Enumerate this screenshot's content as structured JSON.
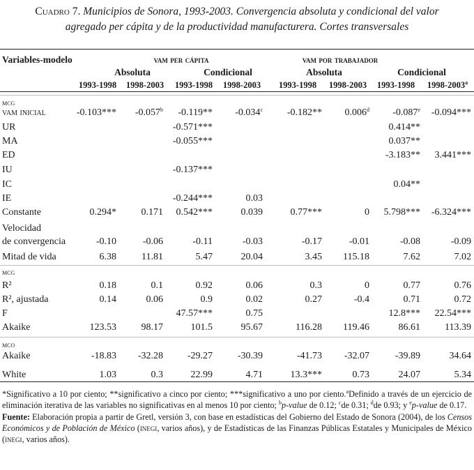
{
  "caption": {
    "number": "Cuadro 7.",
    "title_line1": "Municipios de Sonora, 1993-2003. Convergencia absoluta y condicional del valor",
    "title_line2": "agregado per cápita y de la productividad manufacturera. Cortes transversales"
  },
  "header": {
    "variables": "Variables-modelo",
    "group1": "vam per cápita",
    "group2": "vam por trabajador",
    "sub_abs1": "Absoluta",
    "sub_cond1": "Condicional",
    "sub_abs2": "Absoluta",
    "sub_cond2": "Condicional",
    "periods": [
      "1993-1998",
      "1998-2003",
      "1993-1998",
      "1998-2003",
      "1993-1998",
      "1998-2003",
      "1993-1998",
      "1998-2003"
    ],
    "last_period_sup": "a"
  },
  "rows": [
    {
      "label": "mcg",
      "small": true,
      "cells": [
        "",
        "",
        "",
        "",
        "",
        "",
        "",
        ""
      ]
    },
    {
      "label": "vam inicial",
      "small_label": true,
      "cells": [
        "-0.103***",
        "-0.057",
        "-0.119**",
        "-0.034",
        "-0.182**",
        "0.006",
        "-0.087",
        "-0.094***"
      ],
      "sups": [
        "",
        "b",
        "",
        "c",
        "",
        "d",
        "e",
        ""
      ]
    },
    {
      "label": "UR",
      "cells": [
        "",
        "",
        "-0.571***",
        "",
        "",
        "",
        "0.414**",
        ""
      ]
    },
    {
      "label": "MA",
      "cells": [
        "",
        "",
        "-0.055***",
        "",
        "",
        "",
        "0.037**",
        ""
      ]
    },
    {
      "label": "ED",
      "cells": [
        "",
        "",
        "",
        "",
        "",
        "",
        "-3.183**",
        "3.441***"
      ]
    },
    {
      "label": "IU",
      "cells": [
        "",
        "",
        "-0.137***",
        "",
        "",
        "",
        "",
        ""
      ]
    },
    {
      "label": "IC",
      "cells": [
        "",
        "",
        "",
        "",
        "",
        "",
        "0.04**",
        ""
      ]
    },
    {
      "label": "IE",
      "cells": [
        "",
        "",
        "-0.244***",
        "0.03",
        "",
        "",
        "",
        ""
      ]
    },
    {
      "label": "Constante",
      "cells": [
        "0.294*",
        "0.171",
        "0.542***",
        "0.039",
        "0.77***",
        "0",
        "5.798***",
        "-6.324***"
      ]
    },
    {
      "label": "Velocidad",
      "cells": [
        "",
        "",
        "",
        "",
        "",
        "",
        "",
        ""
      ]
    },
    {
      "label": "de convergencia",
      "cells": [
        "-0.10",
        "-0.06",
        "-0.11",
        "-0.03",
        "-0.17",
        "-0.01",
        "-0.08",
        "-0.09"
      ]
    },
    {
      "label": "Mitad de vida",
      "cells": [
        "6.38",
        "11.81",
        "5.47",
        "20.04",
        "3.45",
        "115.18",
        "7.62",
        "7.02"
      ]
    },
    {
      "label": "mcg",
      "small": true,
      "cells": [
        "",
        "",
        "",
        "",
        "",
        "",
        "",
        ""
      ]
    },
    {
      "label": "R²",
      "cells": [
        "0.18",
        "0.1",
        "0.92",
        "0.06",
        "0.3",
        "0",
        "0.77",
        "0.76"
      ]
    },
    {
      "label": "R², ajustada",
      "cells": [
        "0.14",
        "0.06",
        "0.9",
        "0.02",
        "0.27",
        "-0.4",
        "0.71",
        "0.72"
      ]
    },
    {
      "label": "F",
      "cells": [
        "",
        "",
        "47.57***",
        "0.75",
        "",
        "",
        "12.8***",
        "22.54***"
      ]
    },
    {
      "label": "Akaike",
      "cells": [
        "123.53",
        "98.17",
        "101.5",
        "95.67",
        "116.28",
        "119.46",
        "86.61",
        "113.39"
      ]
    },
    {
      "label": "mco",
      "small": true,
      "cells": [
        "",
        "",
        "",
        "",
        "",
        "",
        "",
        ""
      ]
    },
    {
      "label": "Akaike",
      "cells": [
        "-18.83",
        "-32.28",
        "-29.27",
        "-30.39",
        "-41.73",
        "-32.07",
        "-39.89",
        "34.64"
      ]
    },
    {
      "label": "White",
      "cells": [
        "1.03",
        "0.3",
        "22.99",
        "4.71",
        "13.3***",
        "0.73",
        "24.07",
        "5.34"
      ]
    }
  ],
  "notes": {
    "sig": "*Significativo a 10 por ciento; **significativo a cinco por ciento; ***significativo a uno por ciento.",
    "a_sup": "a",
    "a_text": "Definido a través de un ejercicio de eliminación iterativa de las variables no significativas en al menos 10 por ciento;",
    "b_sup": "b",
    "b_italic": "p-value",
    "b_text": " de 0.12;",
    "c_sup": "c",
    "c_text": "de 0.31;",
    "d_sup": "d",
    "d_text": "de 0.93; y",
    "e_sup": "e",
    "e_italic": "p-value",
    "e_text": " de 0.17.",
    "source_label": "Fuente:",
    "source_1": " Elaboración propia a partir de Gretl, versión 3, con base en estadísticas del Gobierno del Estado de Sonora (2004), de los ",
    "source_italic": "Censos Económicos y de Población de México",
    "source_2": " (",
    "source_inegi1": "inegi",
    "source_3": ", varios años), y de Estadísticas de las Finanzas Públicas Estatales y Municipales de México (",
    "source_inegi2": "inegi",
    "source_4": ", varios años)."
  }
}
